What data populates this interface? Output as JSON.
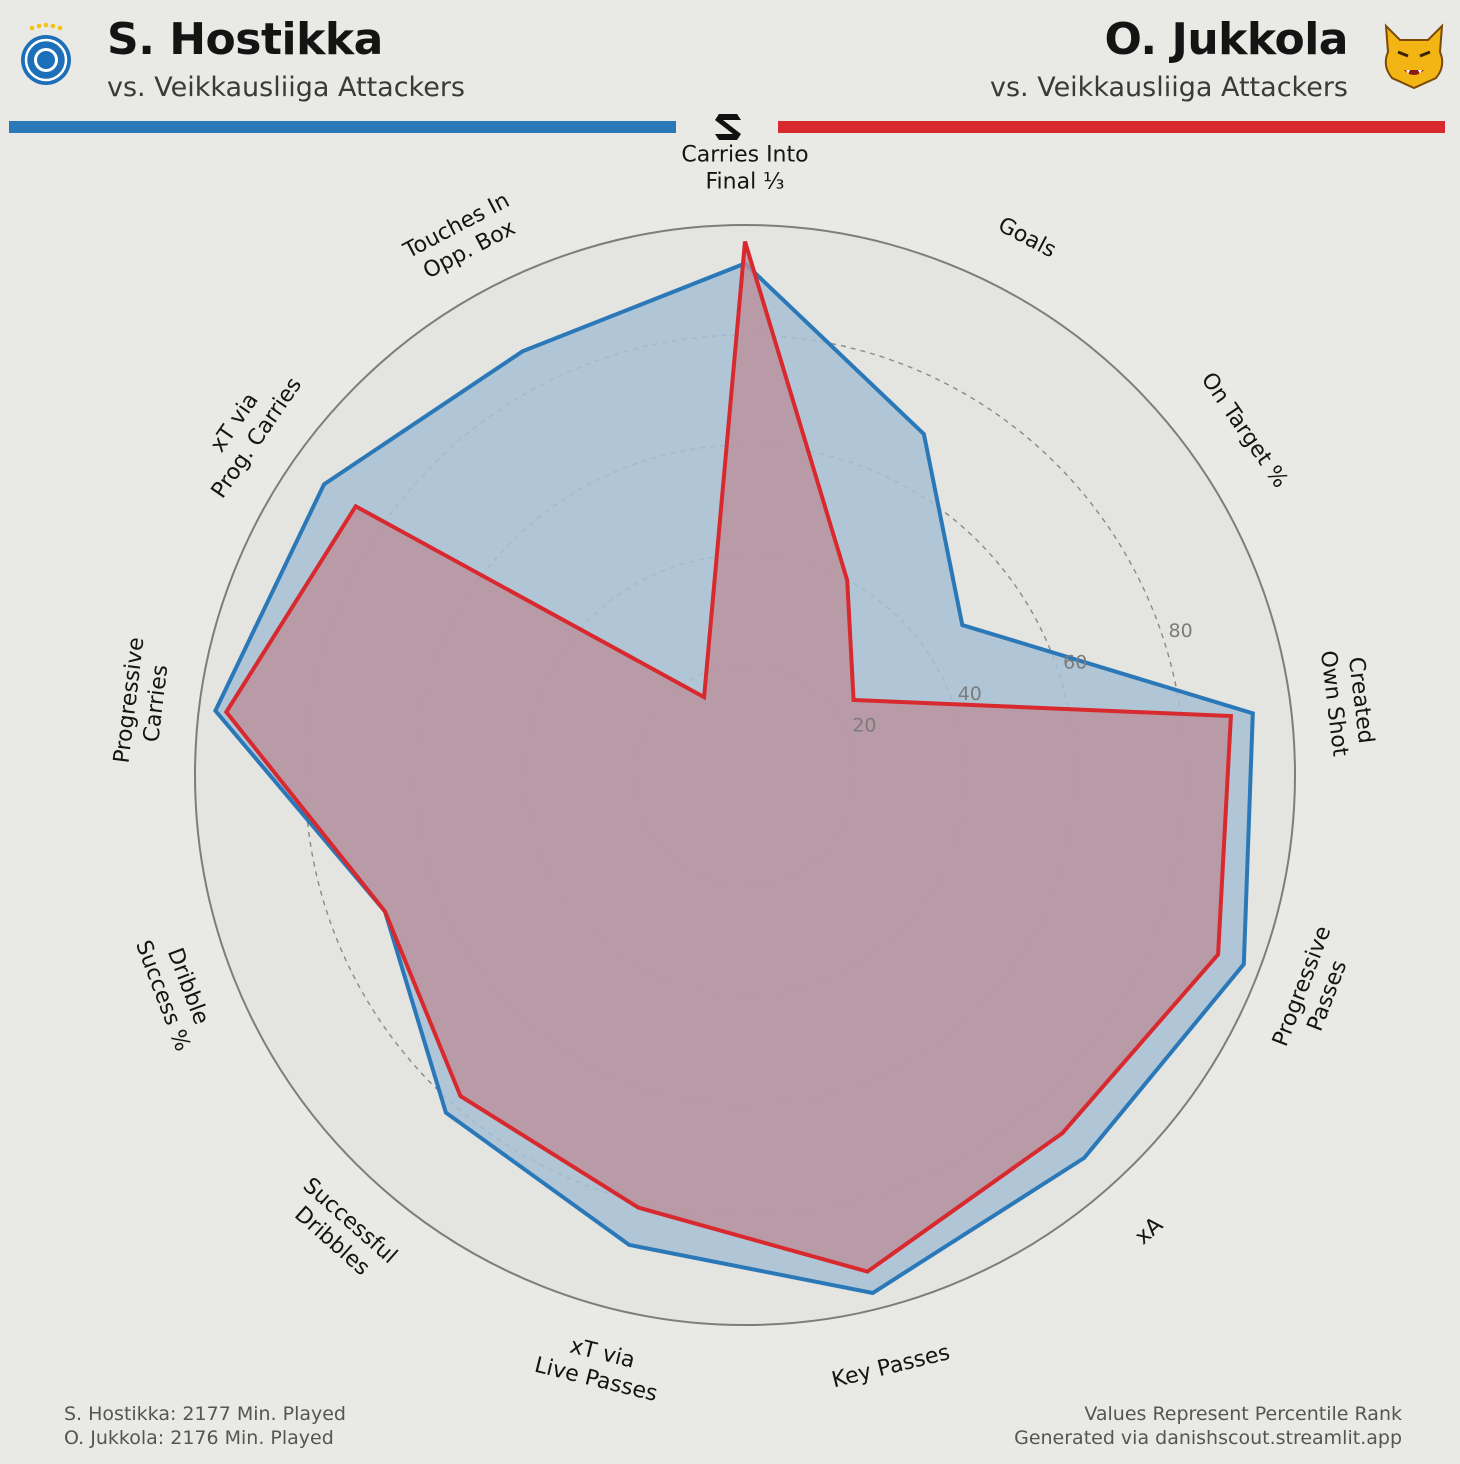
{
  "header": {
    "left_player": "S. Hostikka",
    "left_subtitle": "vs. Veikkausliiga Attackers",
    "right_player": "O. Jukkola",
    "right_subtitle": "vs. Veikkausliiga Attackers"
  },
  "colors": {
    "left": "#2b78b9",
    "right": "#d8292e",
    "left_fill": "#a7c1d3",
    "right_fill": "#bc8f9b"
  },
  "icons": {
    "left_badge": "hjk-crest-icon",
    "right_badge": "ilves-lynx-crest-icon",
    "brand": "danishscout-logo-icon"
  },
  "chart_data": {
    "type": "radar",
    "axes": [
      "Carries Into\nFinal ⅓",
      "Goals",
      "On Target %",
      "Created\nOwn Shot",
      "Progressive\nPasses",
      "xA",
      "Key Passes",
      "xT via\nLive Passes",
      "Successful\nDribbles",
      "Dribble\nSuccess %",
      "Progressive\nCarries",
      "xT via\nProg. Carries",
      "Touches In\nOpp. Box"
    ],
    "rlim": [
      0,
      100
    ],
    "ticks": [
      20,
      40,
      60,
      80
    ],
    "series": [
      {
        "name": "S. Hostikka",
        "values": [
          93,
          70,
          48,
          93,
          97,
          93,
          97,
          88,
          82,
          70,
          97,
          93,
          87
        ]
      },
      {
        "name": "O. Jukkola",
        "values": [
          97,
          40,
          24,
          89,
          92,
          87,
          93,
          81,
          78,
          70,
          95,
          86,
          16
        ]
      }
    ]
  },
  "footer": {
    "left_line1": "S. Hostikka: 2177 Min. Played",
    "left_line2": "O. Jukkola: 2176 Min. Played",
    "right_line1": "Values Represent Percentile Rank",
    "right_line2": "Generated via danishscout.streamlit.app"
  }
}
